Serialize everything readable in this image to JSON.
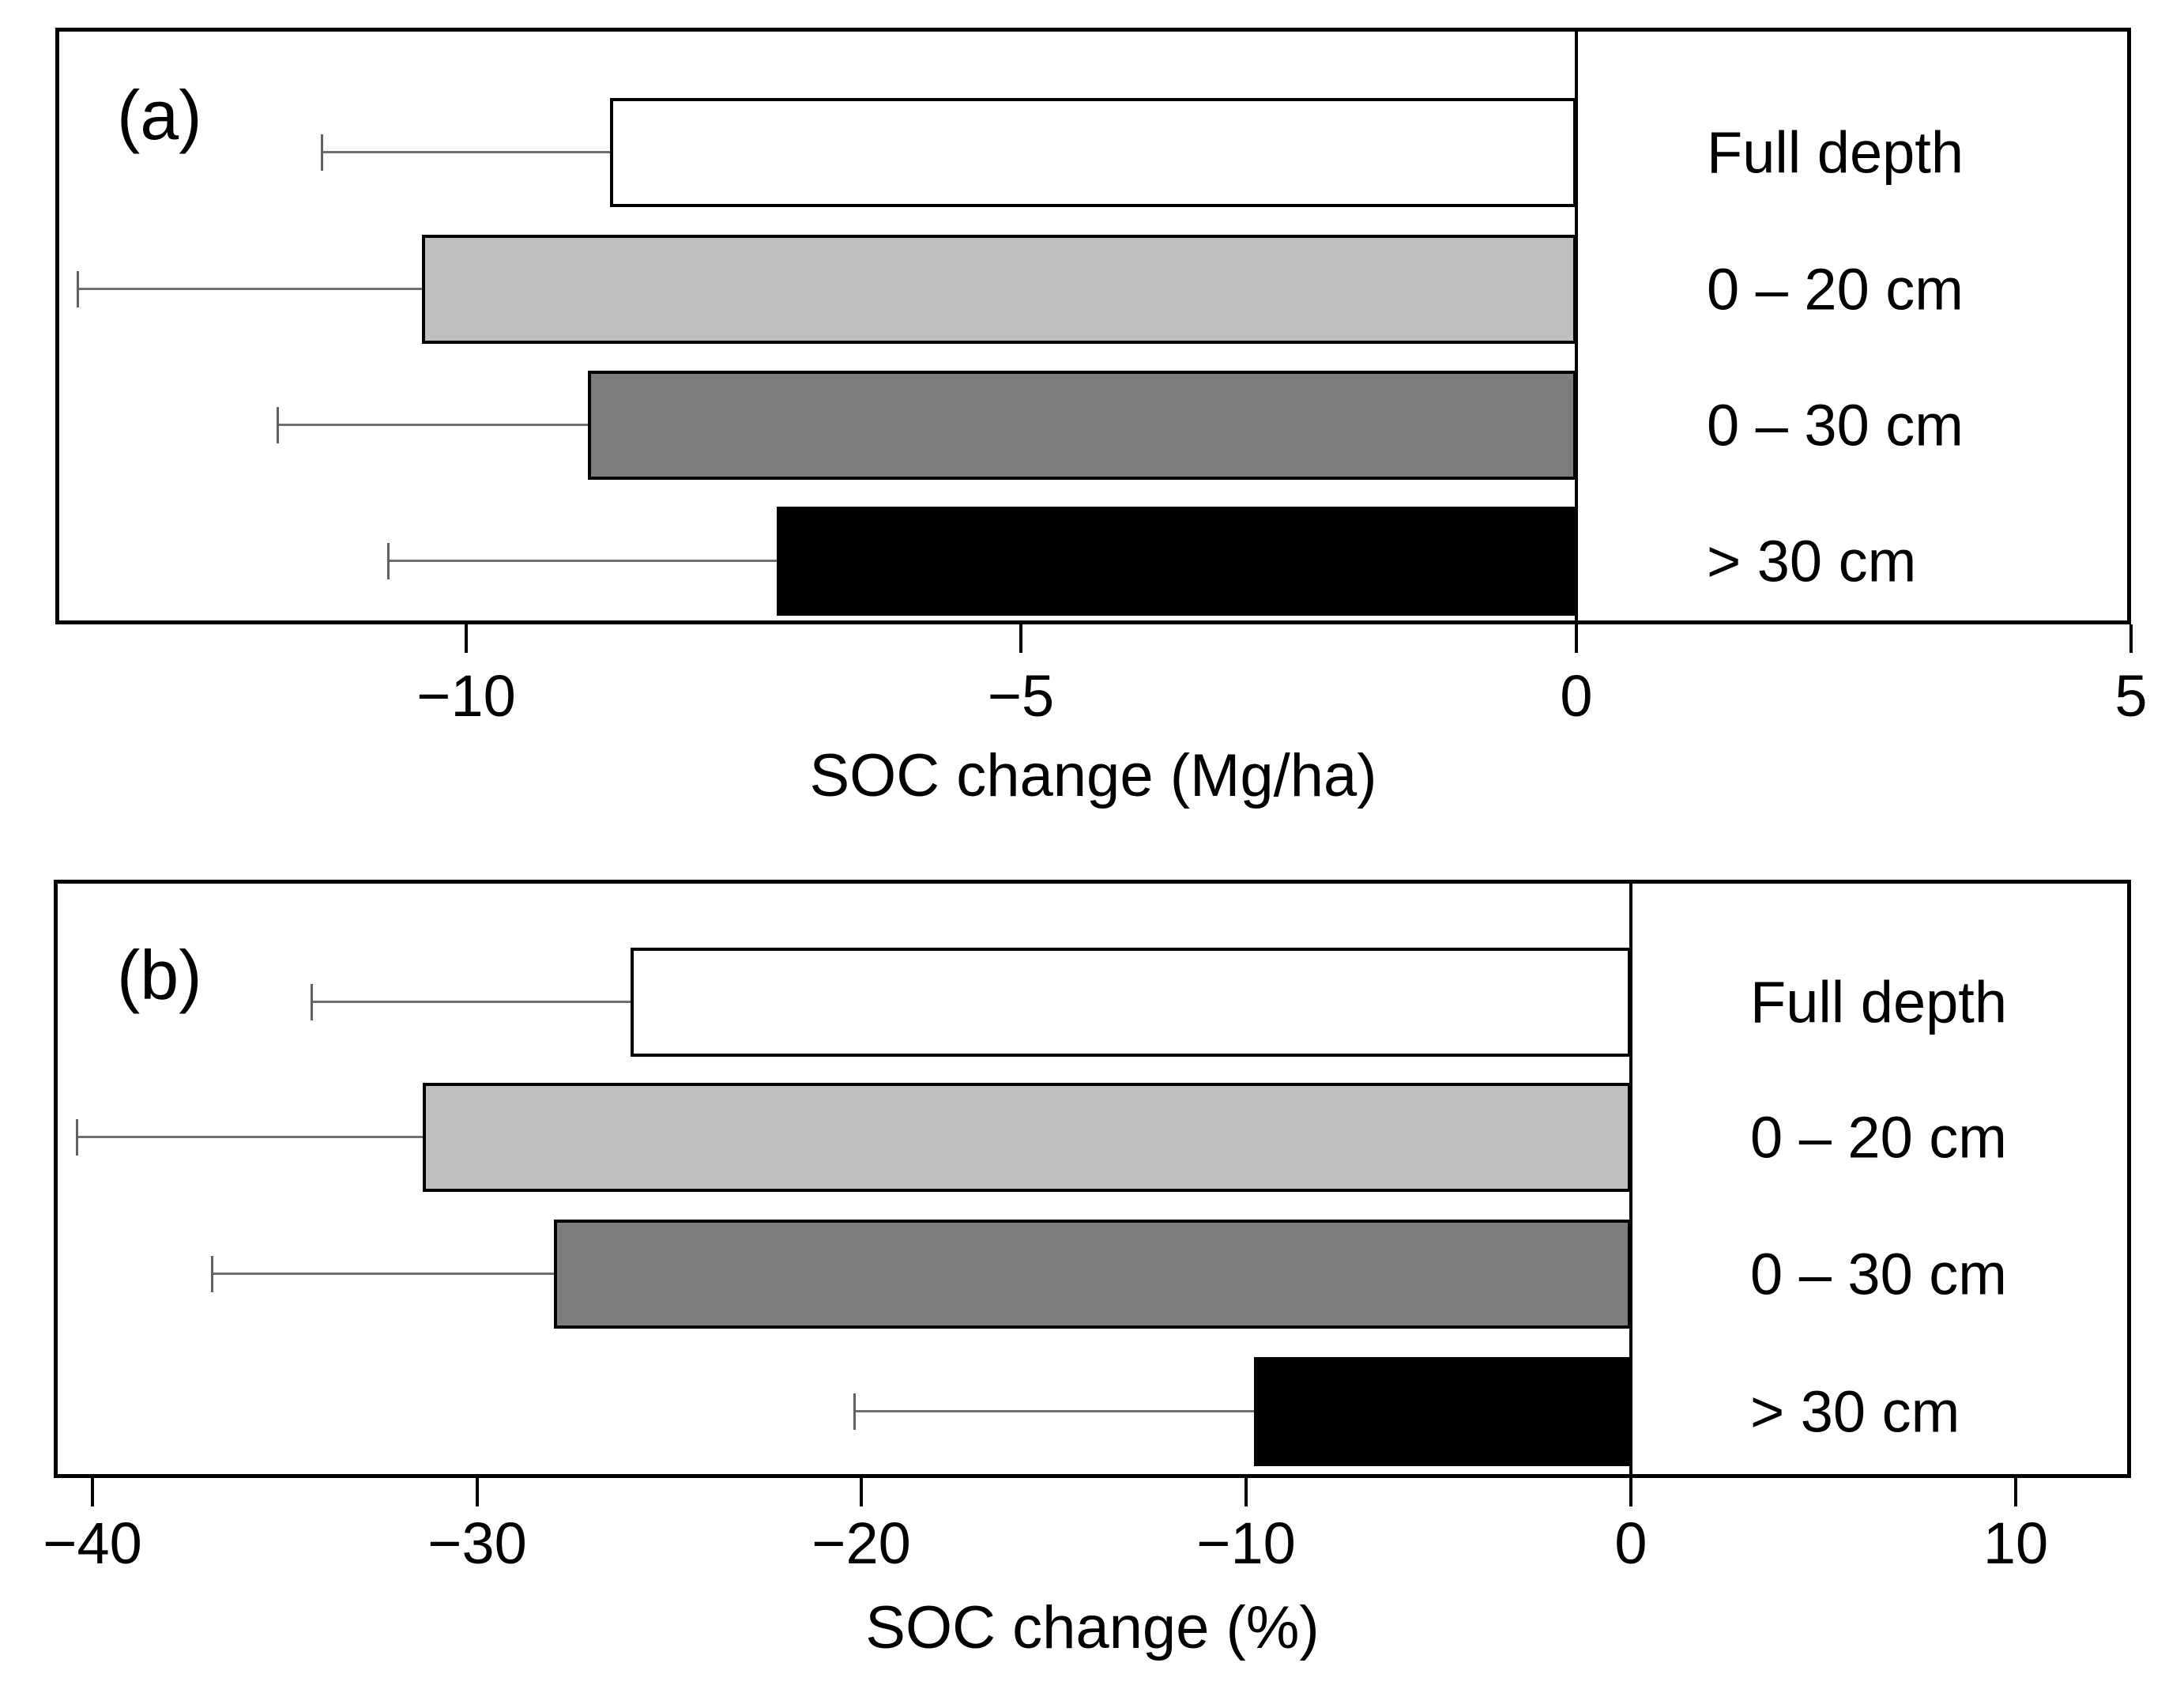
{
  "figure": {
    "background": "#ffffff",
    "description": "Two-panel horizontal bar chart of soil organic carbon (SOC) change by sampling depth, with leftward error bars and depth legend inside the right part of each plot box"
  },
  "chart_data": [
    {
      "panel_label": "(a)",
      "type": "bar",
      "orientation": "horizontal",
      "categories": [
        "Full depth",
        "0 – 20 cm",
        "0 – 30 cm",
        "> 30 cm"
      ],
      "values": [
        -8.7,
        -10.4,
        -8.9,
        -7.2
      ],
      "errors_negative": [
        2.6,
        3.1,
        2.8,
        3.5
      ],
      "bar_colors": [
        "#ffffff",
        "#bfbfbf",
        "#7d7d7d",
        "#000000"
      ],
      "bar_border_color": "#000000",
      "xlabel": "SOC change (Mg/ha)",
      "xlim": [
        -13.7,
        5
      ],
      "xticks": [
        -10,
        -5,
        0,
        5
      ],
      "xtick_labels": [
        "−10",
        "−5",
        "0",
        "5"
      ],
      "grid": false,
      "zero_line": true,
      "error_direction": "negative",
      "legend_position": "right-inside"
    },
    {
      "panel_label": "(b)",
      "type": "bar",
      "orientation": "horizontal",
      "categories": [
        "Full depth",
        "0 – 20 cm",
        "0 – 30 cm",
        "> 30 cm"
      ],
      "values": [
        -26.0,
        -31.4,
        -28.0,
        -9.8
      ],
      "errors_negative": [
        8.3,
        9.0,
        8.9,
        10.4
      ],
      "bar_colors": [
        "#ffffff",
        "#bfbfbf",
        "#7d7d7d",
        "#000000"
      ],
      "bar_border_color": "#000000",
      "xlabel": "SOC change (%)",
      "xlim": [
        -41,
        13
      ],
      "xticks": [
        -40,
        -30,
        -20,
        -10,
        0,
        10
      ],
      "xtick_labels": [
        "−40",
        "−30",
        "−20",
        "−10",
        "0",
        "10"
      ],
      "grid": false,
      "zero_line": true,
      "error_direction": "negative",
      "legend_position": "right-inside"
    }
  ]
}
